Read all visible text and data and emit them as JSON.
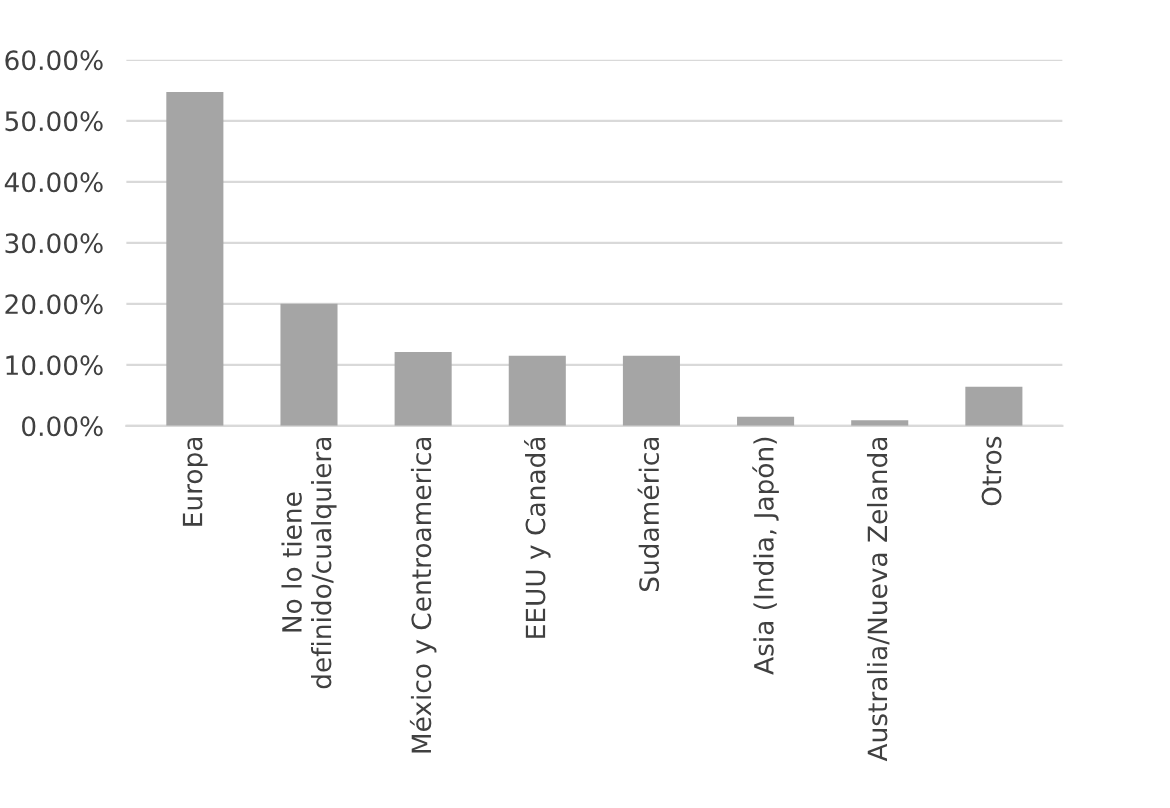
{
  "chart_data": {
    "type": "bar",
    "categories": [
      "Europa",
      "No lo tiene\ndefinido/cualquiera",
      "México y Centroamerica",
      "EEUU y Canadá",
      "Sudamérica",
      "Asia (India, Japón)",
      "Australia/Nueva Zelanda",
      "Otros"
    ],
    "values": [
      54.7,
      20.0,
      12.1,
      11.5,
      11.5,
      1.5,
      0.9,
      6.4
    ],
    "color": "#a5a5a5",
    "ylim": [
      0,
      60
    ],
    "yticks": [
      {
        "value": 0,
        "label": "0.00%"
      },
      {
        "value": 10,
        "label": "10.00%"
      },
      {
        "value": 20,
        "label": "20.00%"
      },
      {
        "value": 30,
        "label": "30.00%"
      },
      {
        "value": 40,
        "label": "40.00%"
      },
      {
        "value": 50,
        "label": "50.00%"
      },
      {
        "value": 60,
        "label": "60.00%"
      }
    ],
    "grid": "y"
  }
}
